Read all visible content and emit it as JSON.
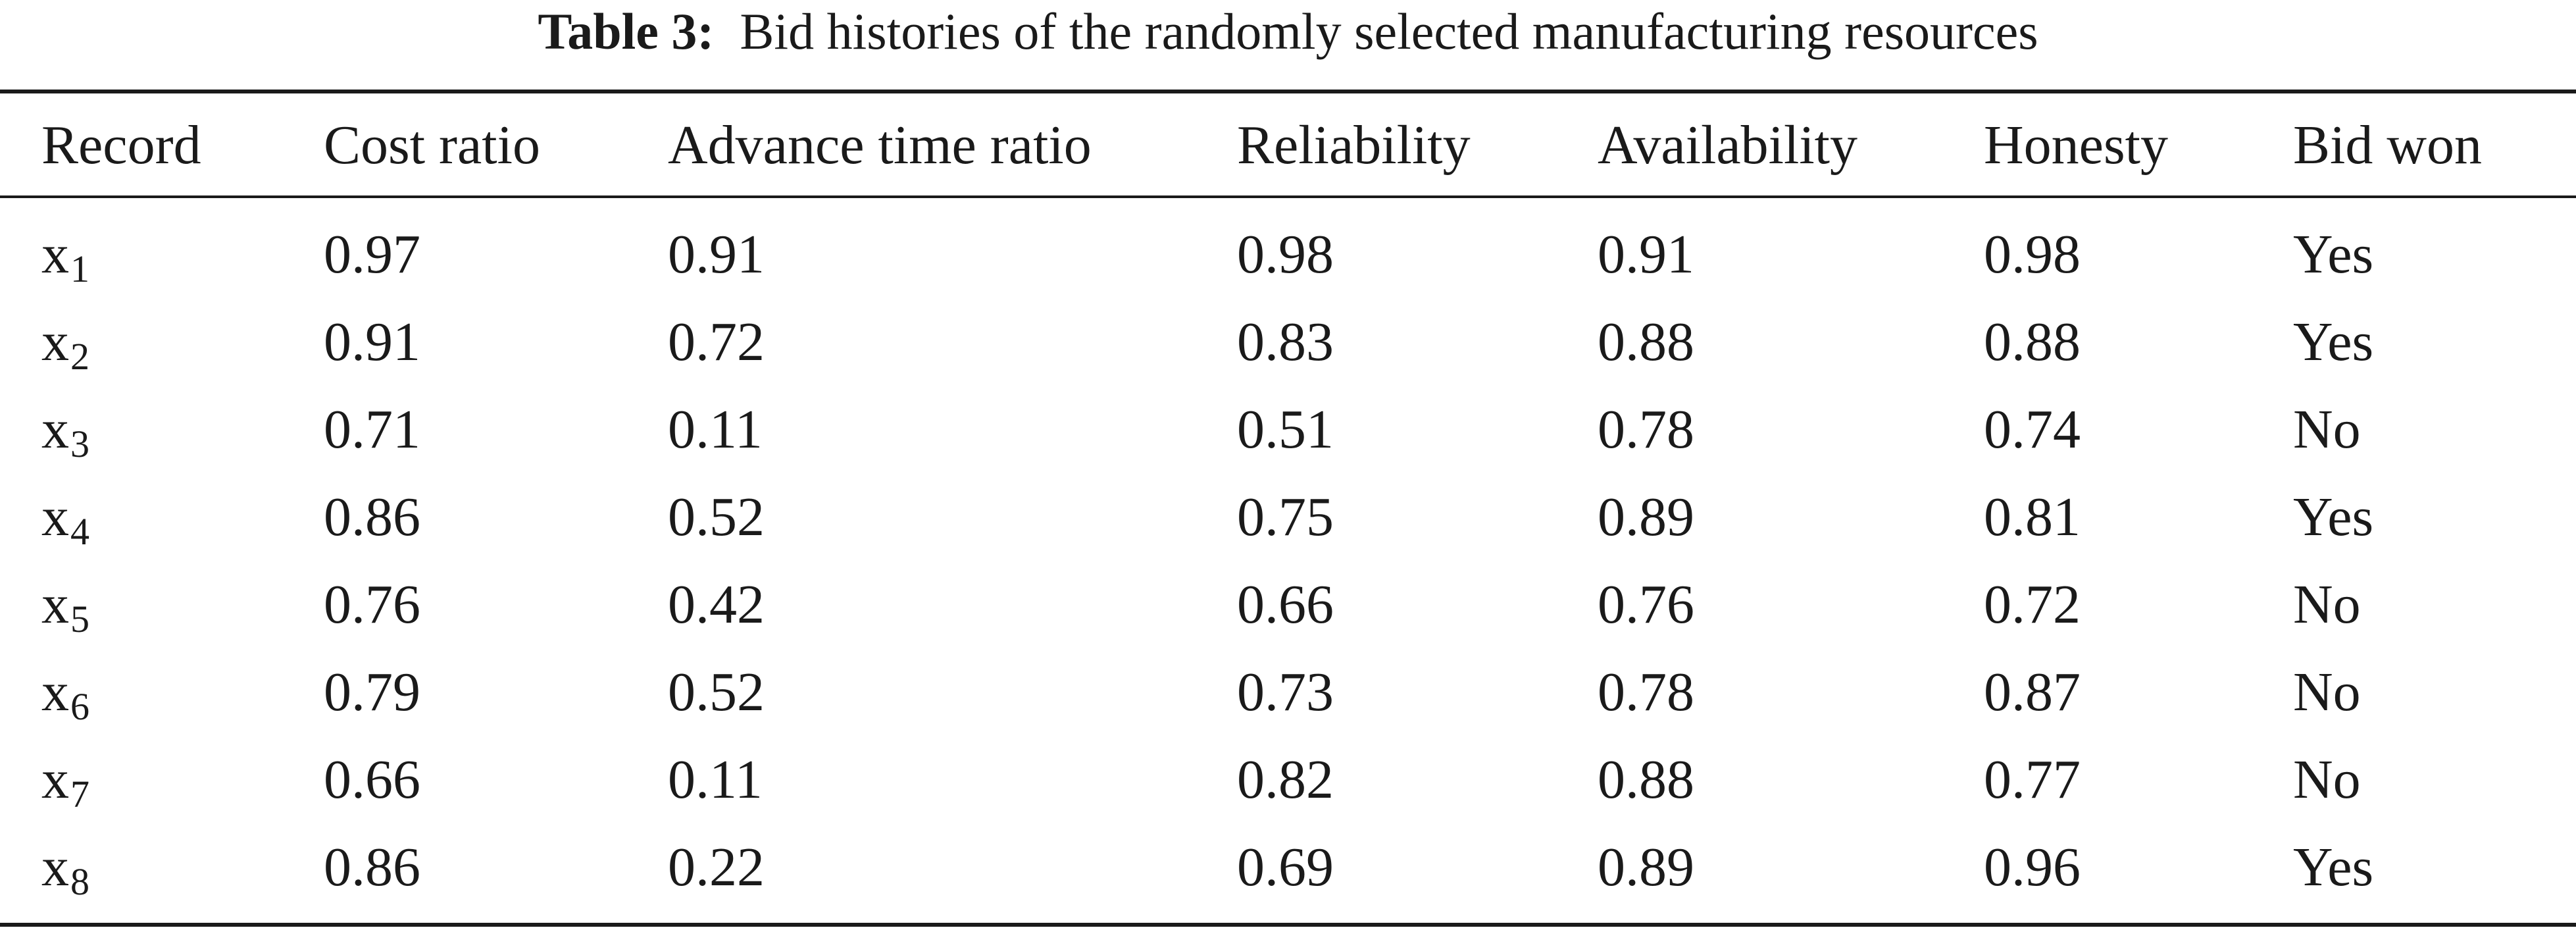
{
  "caption": {
    "label": "Table 3:",
    "text": "Bid histories of the randomly selected manufacturing resources"
  },
  "table": {
    "columns": [
      "Record",
      "Cost ratio",
      "Advance time ratio",
      "Reliability",
      "Availability",
      "Honesty",
      "Bid won"
    ],
    "rows": [
      {
        "record_base": "x",
        "record_sub": "1",
        "cells": [
          "0.97",
          "0.91",
          "0.98",
          "0.91",
          "0.98",
          "Yes"
        ]
      },
      {
        "record_base": "x",
        "record_sub": "2",
        "cells": [
          "0.91",
          "0.72",
          "0.83",
          "0.88",
          "0.88",
          "Yes"
        ]
      },
      {
        "record_base": "x",
        "record_sub": "3",
        "cells": [
          "0.71",
          "0.11",
          "0.51",
          "0.78",
          "0.74",
          "No"
        ]
      },
      {
        "record_base": "x",
        "record_sub": "4",
        "cells": [
          "0.86",
          "0.52",
          "0.75",
          "0.89",
          "0.81",
          "Yes"
        ]
      },
      {
        "record_base": "x",
        "record_sub": "5",
        "cells": [
          "0.76",
          "0.42",
          "0.66",
          "0.76",
          "0.72",
          "No"
        ]
      },
      {
        "record_base": "x",
        "record_sub": "6",
        "cells": [
          "0.79",
          "0.52",
          "0.73",
          "0.78",
          "0.87",
          "No"
        ]
      },
      {
        "record_base": "x",
        "record_sub": "7",
        "cells": [
          "0.66",
          "0.11",
          "0.82",
          "0.88",
          "0.77",
          "No"
        ]
      },
      {
        "record_base": "x",
        "record_sub": "8",
        "cells": [
          "0.86",
          "0.22",
          "0.69",
          "0.89",
          "0.96",
          "Yes"
        ]
      }
    ]
  }
}
